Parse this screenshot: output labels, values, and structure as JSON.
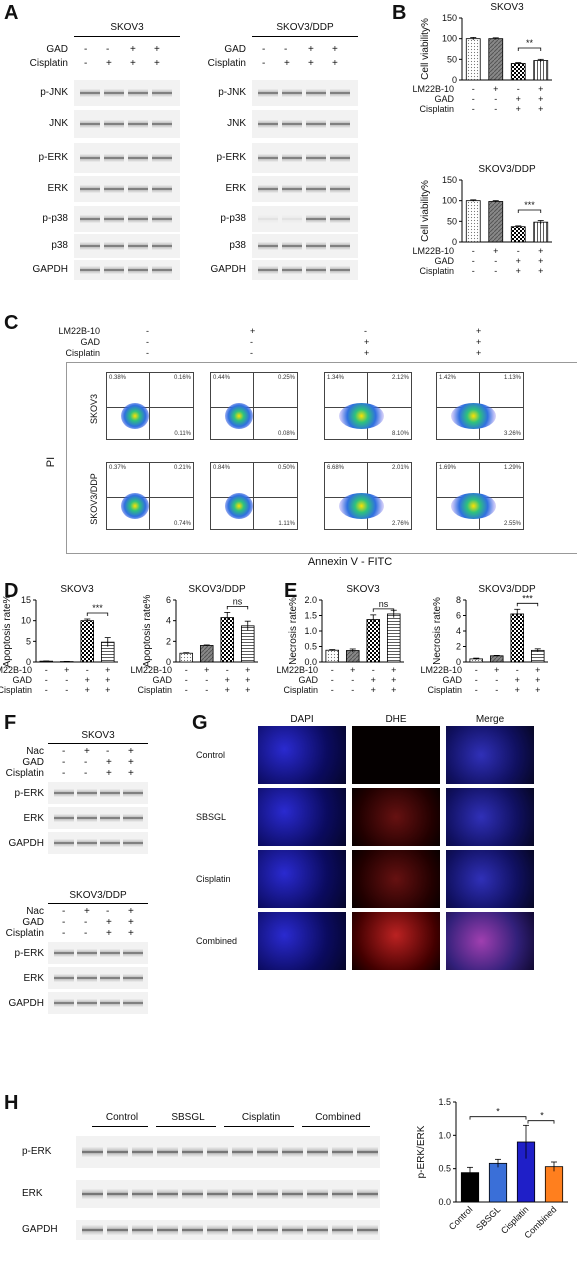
{
  "panel_labels": {
    "a": "A",
    "b": "B",
    "c": "C",
    "d": "D",
    "e": "E",
    "f": "F",
    "g": "G",
    "h": "H"
  },
  "panelA": {
    "left_title": "SKOV3",
    "right_title": "SKOV3/DDP",
    "gad_label": "GAD",
    "cis_label": "Cisplatin",
    "gad_signs": [
      "-",
      "-",
      "+",
      "+"
    ],
    "cis_signs": [
      "-",
      "+",
      "+",
      "+"
    ],
    "rows": [
      "p-JNK",
      "JNK",
      "p-ERK",
      "ERK",
      "p-p38",
      "p38",
      "GAPDH"
    ]
  },
  "panelB": {
    "charts": [
      {
        "title": "SKOV3",
        "ylabel": "Cell viability%",
        "sig": "**"
      },
      {
        "title": "SKOV3/DDP",
        "ylabel": "Cell viability%",
        "sig": "***"
      }
    ],
    "row_labels": [
      "LM22B-10",
      "GAD",
      "Cisplatin"
    ],
    "signs": [
      [
        "-",
        "+",
        "-",
        "+"
      ],
      [
        "-",
        "-",
        "+",
        "+"
      ],
      [
        "-",
        "-",
        "+",
        "+"
      ]
    ]
  },
  "panelC": {
    "row_labels": [
      "LM22B-10",
      "GAD",
      "Cisplatin"
    ],
    "signs": [
      [
        "-",
        "+",
        "-",
        "+"
      ],
      [
        "-",
        "-",
        "+",
        "+"
      ],
      [
        "-",
        "-",
        "+",
        "+"
      ]
    ],
    "ylabel": "PI",
    "xlabel": "Annexin V - FITC",
    "lines": [
      "SKOV3",
      "SKOV3/DDP"
    ],
    "quadrants": [
      [
        [
          "0.38%",
          "0.16%",
          "0.11%"
        ],
        [
          "0.44%",
          "0.25%",
          "0.08%"
        ],
        [
          "1.34%",
          "2.12%",
          "8.10%"
        ],
        [
          "1.42%",
          "1.13%",
          "3.26%"
        ]
      ],
      [
        [
          "0.37%",
          "0.21%",
          "0.74%"
        ],
        [
          "0.84%",
          "0.50%",
          "1.11%"
        ],
        [
          "6.68%",
          "2.01%",
          "2.76%"
        ],
        [
          "1.69%",
          "1.29%",
          "2.55%"
        ]
      ]
    ]
  },
  "panelF": {
    "blocks": [
      "SKOV3",
      "SKOV3/DDP"
    ],
    "cond": [
      "Nac",
      "GAD",
      "Cisplatin"
    ],
    "signs": [
      [
        "-",
        "+",
        "-",
        "+"
      ],
      [
        "-",
        "-",
        "+",
        "+"
      ],
      [
        "-",
        "-",
        "+",
        "+"
      ]
    ],
    "rows": [
      "p-ERK",
      "ERK",
      "GAPDH"
    ]
  },
  "panelG": {
    "cols": [
      "DAPI",
      "DHE",
      "Merge"
    ],
    "rows": [
      "Control",
      "SBSGL",
      "Cisplatin",
      "Combined"
    ]
  },
  "panelH": {
    "groups": [
      "Control",
      "SBSGL",
      "Cisplatin",
      "Combined"
    ],
    "rows": [
      "p-ERK",
      "ERK",
      "GAPDH"
    ]
  },
  "chart_data": [
    {
      "type": "bar",
      "title": "SKOV3",
      "ylabel": "Cell viability%",
      "categories": [
        "1",
        "2",
        "3",
        "4"
      ],
      "values": [
        100,
        100,
        40,
        47
      ],
      "errors": [
        3,
        2,
        2,
        3
      ],
      "ylim": [
        0,
        150
      ],
      "yticks": [
        0,
        50,
        100,
        150
      ],
      "significance": "**"
    },
    {
      "type": "bar",
      "title": "SKOV3/DDP",
      "ylabel": "Cell viability%",
      "categories": [
        "1",
        "2",
        "3",
        "4"
      ],
      "values": [
        100,
        98,
        37,
        48
      ],
      "errors": [
        2,
        2,
        2,
        4
      ],
      "ylim": [
        0,
        150
      ],
      "yticks": [
        0,
        50,
        100,
        150
      ],
      "significance": "***"
    },
    {
      "type": "bar",
      "title": "SKOV3",
      "ylabel": "Apoptosis rate%",
      "categories": [
        "1",
        "2",
        "3",
        "4"
      ],
      "values": [
        0.2,
        0.1,
        10,
        4.8
      ],
      "errors": [
        0.05,
        0.05,
        0.4,
        1.1
      ],
      "ylim": [
        0,
        15
      ],
      "yticks": [
        0,
        5,
        10,
        15
      ],
      "significance": "***"
    },
    {
      "type": "bar",
      "title": "SKOV3/DDP",
      "ylabel": "Apoptosis rate%",
      "categories": [
        "1",
        "2",
        "3",
        "4"
      ],
      "values": [
        0.85,
        1.6,
        4.3,
        3.5
      ],
      "errors": [
        0.05,
        0.05,
        0.5,
        0.45
      ],
      "ylim": [
        0,
        6
      ],
      "yticks": [
        0,
        2,
        4,
        6
      ],
      "significance": "ns"
    },
    {
      "type": "bar",
      "title": "SKOV3",
      "ylabel": "Necrosis rate%",
      "categories": [
        "1",
        "2",
        "3",
        "4"
      ],
      "values": [
        0.38,
        0.37,
        1.37,
        1.55
      ],
      "errors": [
        0.02,
        0.05,
        0.15,
        0.12
      ],
      "ylim": [
        0,
        2
      ],
      "yticks": [
        0,
        0.5,
        1,
        1.5,
        2
      ],
      "ytick_labels": [
        "0.0",
        "0.5",
        "1.0",
        "1.5",
        "2.0"
      ],
      "significance": "ns"
    },
    {
      "type": "bar",
      "title": "SKOV3/DDP",
      "ylabel": "Necrosis rate%",
      "categories": [
        "1",
        "2",
        "3",
        "4"
      ],
      "values": [
        0.4,
        0.8,
        6.2,
        1.5
      ],
      "errors": [
        0.1,
        0.05,
        0.6,
        0.2
      ],
      "ylim": [
        0,
        8
      ],
      "yticks": [
        0,
        2,
        4,
        6,
        8
      ],
      "significance": "***"
    },
    {
      "type": "bar",
      "title": "",
      "ylabel": "p-ERK/ERK",
      "categories": [
        "Control",
        "SBSGL",
        "Cisplatin",
        "Combined"
      ],
      "values": [
        0.44,
        0.58,
        0.9,
        0.53
      ],
      "errors": [
        0.08,
        0.06,
        0.25,
        0.07
      ],
      "ylim": [
        0,
        1.5
      ],
      "yticks": [
        0,
        0.5,
        1,
        1.5
      ],
      "ytick_labels": [
        "0.0",
        "0.5",
        "1.0",
        "1.5"
      ],
      "colors": [
        "#000000",
        "#3a6fd8",
        "#1f1fc8",
        "#ff7f1e"
      ],
      "significance": [
        "*",
        "*"
      ]
    }
  ]
}
